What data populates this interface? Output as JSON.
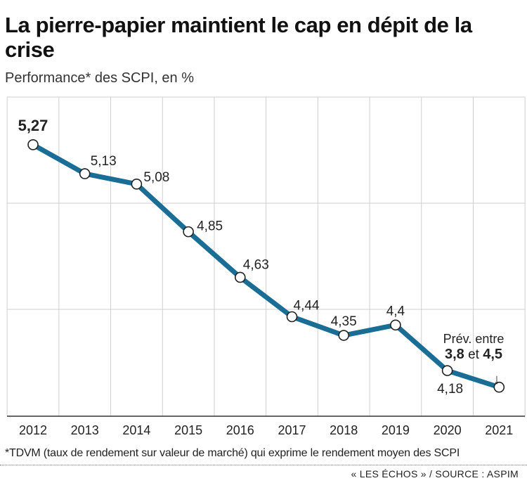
{
  "title": "La pierre-papier maintient le cap en dépit de la crise",
  "subtitle": "Performance* des SCPI, en %",
  "footnote": "*TDVM (taux de rendement sur valeur de marché) qui exprime le rendement moyen des SCPI",
  "source": "« LES ÉCHOS » / SOURCE : ASPIM",
  "annotation": {
    "line1": "Prév. entre",
    "low": "3,8",
    "connector": "et",
    "high": "4,5",
    "arrow": "↓"
  },
  "chart_data": {
    "type": "line",
    "title": "La pierre-papier maintient le cap en dépit de la crise",
    "subtitle": "Performance* des SCPI, en %",
    "xlabel": "",
    "ylabel": "",
    "categories": [
      "2012",
      "2013",
      "2014",
      "2015",
      "2016",
      "2017",
      "2018",
      "2019",
      "2020",
      "2021"
    ],
    "values": [
      5.27,
      5.13,
      5.08,
      4.85,
      4.63,
      4.44,
      4.35,
      4.4,
      4.18,
      4.1
    ],
    "data_labels": [
      "5,27",
      "5,13",
      "5,08",
      "4,85",
      "4,63",
      "4,44",
      "4,35",
      "4,4",
      "4,18",
      ""
    ],
    "highlight_label_index": 0,
    "forecast_index": 9,
    "forecast_range": [
      3.8,
      4.5
    ],
    "ylim": [
      3.96,
      5.5
    ],
    "grid": "horizontal and vertical",
    "legend": "none",
    "colors": {
      "line": "#1a6d94",
      "marker_fill": "#ffffff",
      "marker_stroke": "#222222",
      "grid": "#cfcfcf",
      "axis": "#333333"
    }
  }
}
